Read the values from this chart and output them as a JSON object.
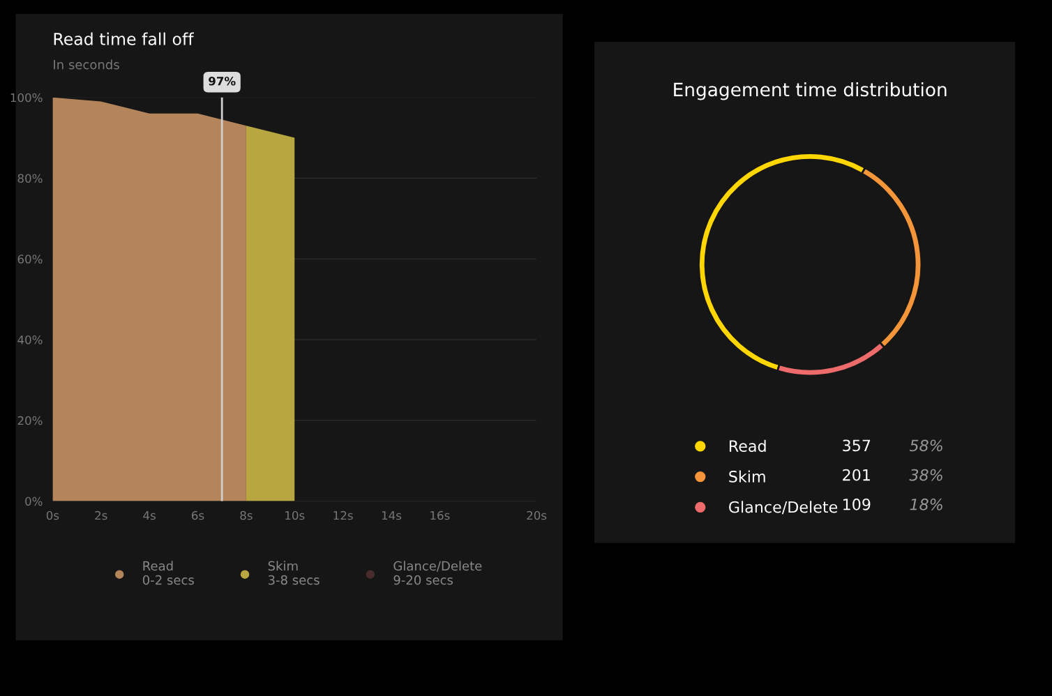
{
  "chart_data": [
    {
      "type": "area",
      "title": "Read time fall off",
      "subtitle": "In seconds",
      "series": [
        {
          "name": "Read\n0-2 secs",
          "color": "#b4845a",
          "x": [
            0,
            2,
            4,
            6,
            8
          ],
          "values": [
            100,
            99,
            96,
            96,
            93
          ]
        },
        {
          "name": "Skim\n3-8 secs",
          "color": "#b8a640",
          "x": [
            8,
            10
          ],
          "values": [
            93,
            90
          ]
        },
        {
          "name": "Glance/Delete\n9-20 secs",
          "color": "#4a2c2c"
        }
      ],
      "xlim": [
        0,
        20
      ],
      "xticks": [
        {
          "value": 0,
          "label": "0s"
        },
        {
          "value": 2,
          "label": "2s"
        },
        {
          "value": 4,
          "label": "4s"
        },
        {
          "value": 6,
          "label": "6s"
        },
        {
          "value": 8,
          "label": "8s"
        },
        {
          "value": 10,
          "label": "10s"
        },
        {
          "value": 12,
          "label": "12s"
        },
        {
          "value": 14,
          "label": "14s"
        },
        {
          "value": 16,
          "label": "16s"
        },
        {
          "value": 20,
          "label": "20s"
        }
      ],
      "ylim": [
        0,
        100
      ],
      "yticks": [
        {
          "value": 0,
          "label": "0%"
        },
        {
          "value": 20,
          "label": "20%"
        },
        {
          "value": 40,
          "label": "40%"
        },
        {
          "value": 60,
          "label": "60%"
        },
        {
          "value": 80,
          "label": "80%"
        },
        {
          "value": 100,
          "label": "100%"
        }
      ],
      "ref_lines": [
        {
          "axis": "x",
          "value": 7,
          "color": "#d0d0d0"
        }
      ],
      "annotations": [
        "97%"
      ],
      "grid": "y",
      "legend": "bottom"
    },
    {
      "type": "donut",
      "title": "Engagement time distribution",
      "categories": [
        "Read",
        "Skim",
        "Glance/Delete"
      ],
      "values": [
        357,
        201,
        109
      ],
      "colors": [
        "#ffd600",
        "#f5953a",
        "#ee6b6b"
      ],
      "data_labels": true,
      "annotations": [
        "58%",
        "38%",
        "18%"
      ],
      "legend": "bottom"
    }
  ]
}
